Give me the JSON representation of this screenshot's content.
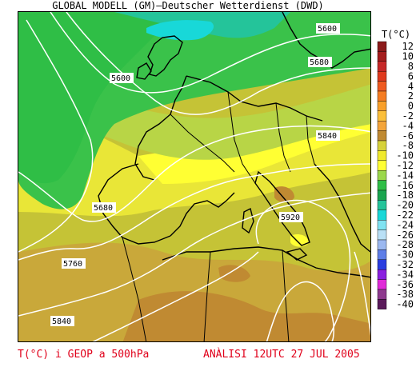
{
  "header": {
    "title": "GLOBAL MODELL (GM)—Deutscher Wetterdienst (DWD)"
  },
  "legend": {
    "title": "T(°C)",
    "entries": [
      {
        "label": "12",
        "color": "#8b1a1a"
      },
      {
        "label": "10",
        "color": "#a51d1d"
      },
      {
        "label": "8",
        "color": "#c62828"
      },
      {
        "label": "6",
        "color": "#e03a1e"
      },
      {
        "label": "4",
        "color": "#ef5a20"
      },
      {
        "label": "2",
        "color": "#f57c22"
      },
      {
        "label": "0",
        "color": "#f9a02a"
      },
      {
        "label": "-2",
        "color": "#fbbf3a"
      },
      {
        "label": "-4",
        "color": "#f4a53a"
      },
      {
        "label": "-6",
        "color": "#c08a32"
      },
      {
        "label": "-8",
        "color": "#d7d23a"
      },
      {
        "label": "-10",
        "color": "#f0ea2c"
      },
      {
        "label": "-12",
        "color": "#ffff33"
      },
      {
        "label": "-14",
        "color": "#9bd84b"
      },
      {
        "label": "-16",
        "color": "#2fbe46"
      },
      {
        "label": "-18",
        "color": "#19a54f"
      },
      {
        "label": "-20",
        "color": "#24c49a"
      },
      {
        "label": "-22",
        "color": "#18d8d8"
      },
      {
        "label": "-24",
        "color": "#7fe3f2"
      },
      {
        "label": "-26",
        "color": "#b9e0f6"
      },
      {
        "label": "-28",
        "color": "#9bb8f0"
      },
      {
        "label": "-30",
        "color": "#5e7ee8"
      },
      {
        "label": "-32",
        "color": "#2a3de0"
      },
      {
        "label": "-34",
        "color": "#8a20e0"
      },
      {
        "label": "-36",
        "color": "#e02ad8"
      },
      {
        "label": "-38",
        "color": "#8e3a8e"
      },
      {
        "label": "-40",
        "color": "#5a1a5a"
      }
    ]
  },
  "isolines": [
    {
      "label": "5600",
      "x": 5600
    },
    {
      "label": "5680",
      "x": 5680
    },
    {
      "label": "5840",
      "x": 5840
    },
    {
      "label": "5600",
      "x": 5600
    },
    {
      "label": "5680",
      "x": 5680
    },
    {
      "label": "5920",
      "x": 5920
    },
    {
      "label": "5760",
      "x": 5760
    },
    {
      "label": "5840",
      "x": 5840
    }
  ],
  "footer": {
    "left": "T(°C) i GEOP a 500hPa",
    "right": "ANÀLISI 12UTC 27 JUL 2005"
  },
  "colors": {
    "land_border": "#000000",
    "isoline": "#ffffff",
    "footer_text": "#e0001a"
  }
}
